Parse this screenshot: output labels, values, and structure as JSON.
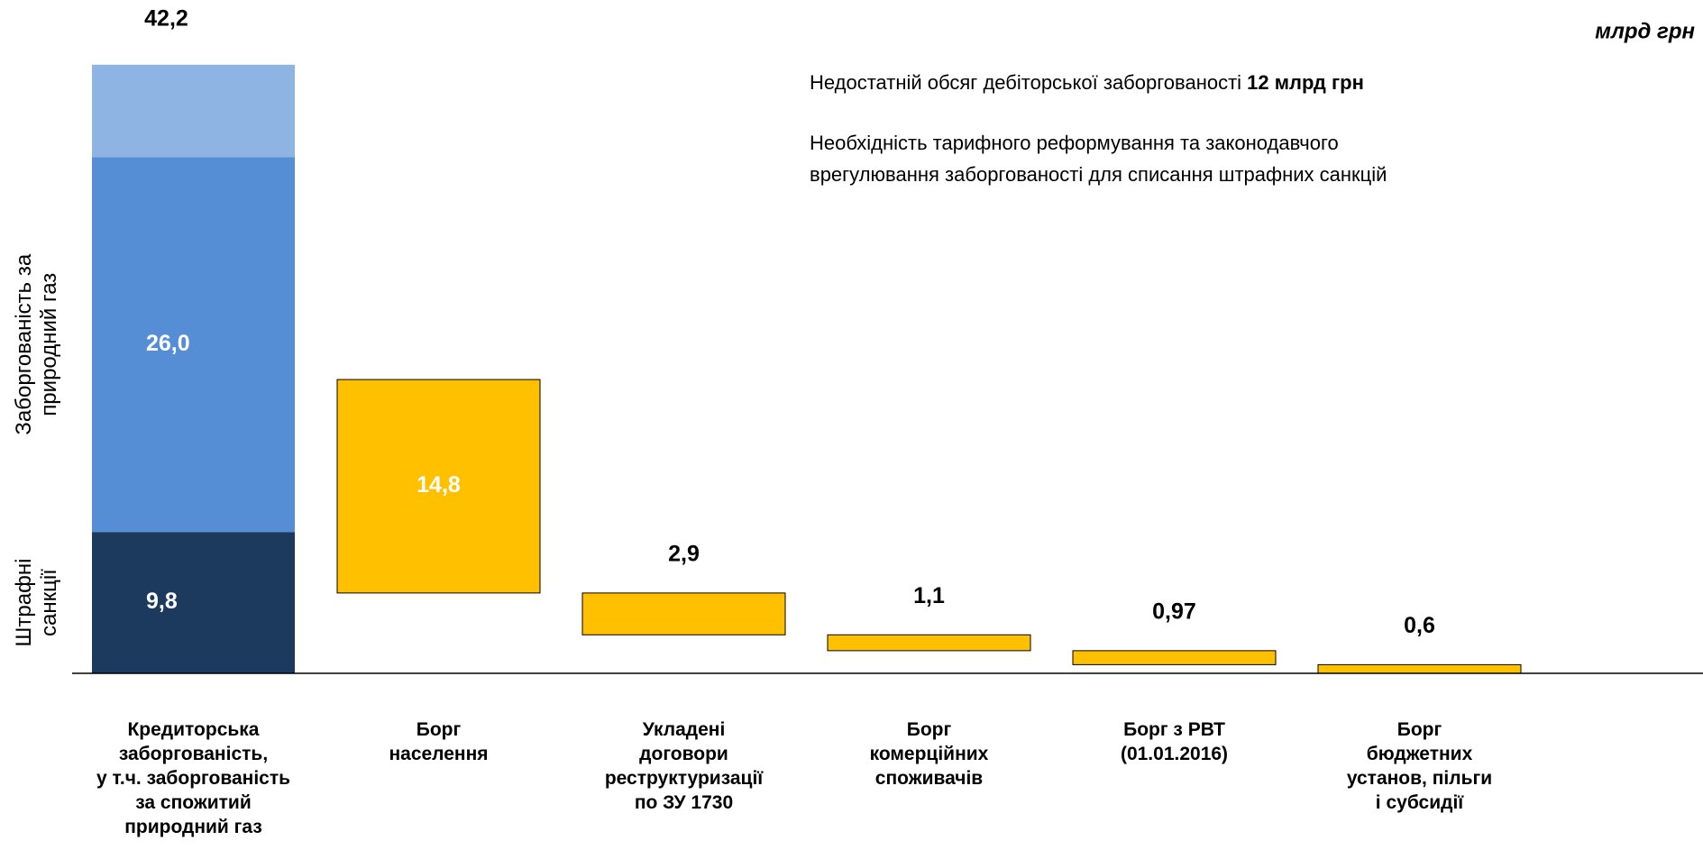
{
  "chart_data": {
    "type": "waterfall",
    "unit": "млрд грн",
    "ylim": [
      0,
      45
    ],
    "categories": [
      [
        "Кредиторська",
        "заборгованість,",
        "у т.ч. заборгованість",
        "за спожитий",
        "природний газ"
      ],
      [
        "Борг",
        "населення"
      ],
      [
        "Укладені",
        "договори",
        "реструктуризації",
        "по ЗУ 1730"
      ],
      [
        "Борг",
        "комерційних",
        "споживачів"
      ],
      [
        "Борг з РВТ",
        "(01.01.2016)"
      ],
      [
        "Борг",
        "бюджетних",
        "установ, пільги",
        "і субсидії"
      ]
    ],
    "stack": {
      "values": [
        9.8,
        26.0,
        6.4
      ],
      "value_labels": [
        "9,8",
        "26,0",
        null
      ],
      "colors": [
        "#1c3a5e",
        "#558ed5",
        "#8eb4e3"
      ],
      "side_labels": [
        [
          "Штрафні",
          "санкції"
        ],
        [
          "Заборгованість за",
          "природний газ"
        ],
        null
      ]
    },
    "total": 42.2,
    "total_label": "42,2",
    "decreases": {
      "values": [
        14.8,
        2.9,
        1.1,
        0.97,
        0.6
      ],
      "value_labels": [
        "14,8",
        "2,9",
        "1,1",
        "0,97",
        "0,6"
      ],
      "color": "#ffc000"
    },
    "annotations": [
      {
        "text": "Недостатній обсяг дебіторської заборгованості ",
        "bold": "12 млрд грн"
      },
      {
        "lines": [
          "Необхідність тарифного реформування та законодавчого",
          "врегулювання заборгованості для списання штрафних санкцій"
        ]
      }
    ]
  }
}
